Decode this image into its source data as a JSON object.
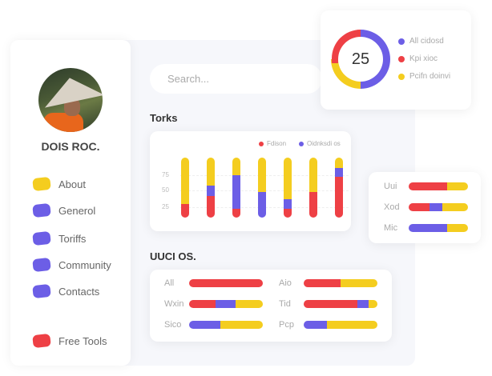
{
  "colors": {
    "red": "#ee4045",
    "purple": "#6c5ee6",
    "yellow": "#f4cd1f"
  },
  "profile": {
    "name": "DOIS ROC."
  },
  "nav": [
    {
      "label": "About",
      "color": "#f4cd1f"
    },
    {
      "label": "Generol",
      "color": "#6c5ee6"
    },
    {
      "label": "Toriffs",
      "color": "#6c5ee6"
    },
    {
      "label": "Community",
      "color": "#6c5ee6"
    },
    {
      "label": "Contacts",
      "color": "#6c5ee6"
    },
    {
      "label": "Free Tools",
      "color": "#ee4045"
    }
  ],
  "search": {
    "placeholder": "Search..."
  },
  "donut": {
    "value": "25",
    "legend": [
      {
        "label": "All cidosd",
        "color": "#6c5ee6",
        "share": 50
      },
      {
        "label": "Kpi xioc",
        "color": "#ee4045",
        "share": 25
      },
      {
        "label": "Pcifn doinvi",
        "color": "#f4cd1f",
        "share": 25
      }
    ]
  },
  "torks": {
    "title": "Torks"
  },
  "uuci": {
    "title": "UUCI OS."
  },
  "chart_data": [
    {
      "type": "bar",
      "stacked": true,
      "series_names": [
        "Fdison",
        "Oidnksdi os"
      ],
      "yticks": [
        "25",
        "50",
        "75"
      ],
      "bars": [
        {
          "red": 23,
          "purple": 0,
          "yellow": 77
        },
        {
          "red": 36,
          "purple": 17,
          "yellow": 47
        },
        {
          "red": 15,
          "purple": 56,
          "yellow": 29
        },
        {
          "red": 0,
          "purple": 43,
          "yellow": 57
        },
        {
          "red": 15,
          "purple": 16,
          "yellow": 69
        },
        {
          "red": 43,
          "purple": 0,
          "yellow": 57
        },
        {
          "red": 68,
          "purple": 15,
          "yellow": 17
        }
      ]
    },
    {
      "type": "bar",
      "orientation": "horizontal",
      "stacked": true,
      "rows": [
        {
          "label": "Uui",
          "red": 65,
          "purple": 0,
          "yellow": 35
        },
        {
          "label": "Xod",
          "red": 35,
          "purple": 22,
          "yellow": 43
        },
        {
          "label": "Mic",
          "red": 0,
          "purple": 65,
          "yellow": 35
        }
      ]
    },
    {
      "type": "bar",
      "orientation": "horizontal",
      "stacked": true,
      "rows": [
        {
          "label": "All",
          "red": 100,
          "purple": 0,
          "yellow": 0
        },
        {
          "label": "Wxin",
          "red": 36,
          "purple": 27,
          "yellow": 37
        },
        {
          "label": "Sico",
          "red": 0,
          "purple": 42,
          "yellow": 58
        },
        {
          "label": "Aio",
          "red": 50,
          "purple": 0,
          "yellow": 50
        },
        {
          "label": "Tid",
          "red": 73,
          "purple": 15,
          "yellow": 12
        },
        {
          "label": "Pcp",
          "red": 0,
          "purple": 31,
          "yellow": 69
        }
      ]
    }
  ]
}
